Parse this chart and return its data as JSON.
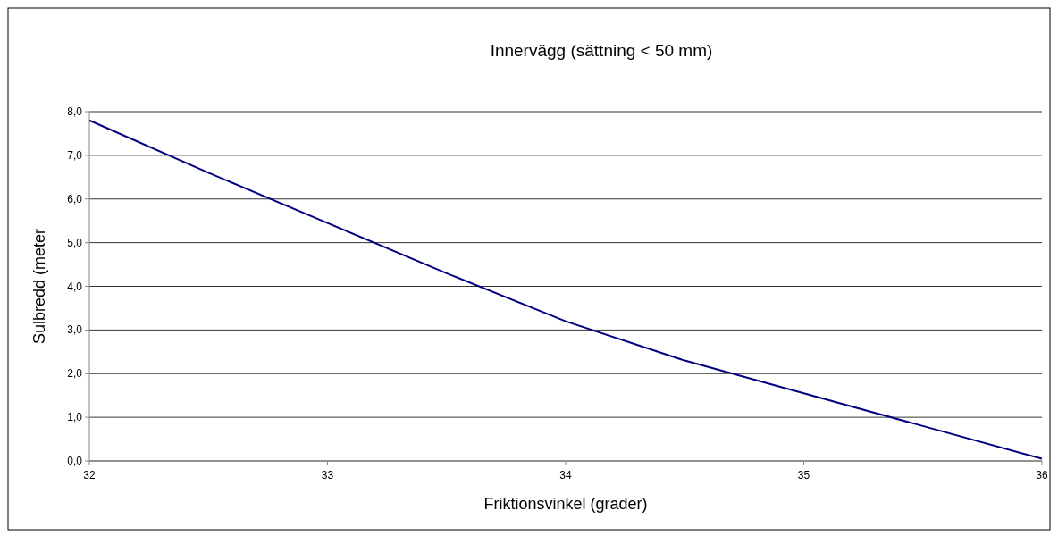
{
  "chart_data": {
    "type": "line",
    "title": "Innervägg (sättning < 50 mm)",
    "xlabel": "Friktionsvinkel (grader)",
    "ylabel": "Sulbredd (meter",
    "x": [
      32,
      32.5,
      33,
      33.5,
      34,
      34.5,
      35,
      35.5,
      36
    ],
    "series": [
      {
        "color": "#000080",
        "values": [
          7.8,
          6.6,
          5.45,
          4.3,
          3.2,
          2.3,
          1.55,
          0.8,
          0.05
        ]
      }
    ],
    "xlim": [
      32,
      36
    ],
    "xticks": [
      32,
      33,
      34,
      35,
      36
    ],
    "ylim": [
      0,
      8
    ],
    "yticks": [
      {
        "value": 0,
        "label": "0,0"
      },
      {
        "value": 1,
        "label": "1,0"
      },
      {
        "value": 2,
        "label": "2,0"
      },
      {
        "value": 3,
        "label": "3,0"
      },
      {
        "value": 4,
        "label": "4,0"
      },
      {
        "value": 5,
        "label": "5,0"
      },
      {
        "value": 6,
        "label": "6,0"
      },
      {
        "value": 7,
        "label": "7,0"
      },
      {
        "value": 8,
        "label": "8,0"
      }
    ],
    "grid": "y",
    "marker": "none",
    "line_style": "solid"
  }
}
